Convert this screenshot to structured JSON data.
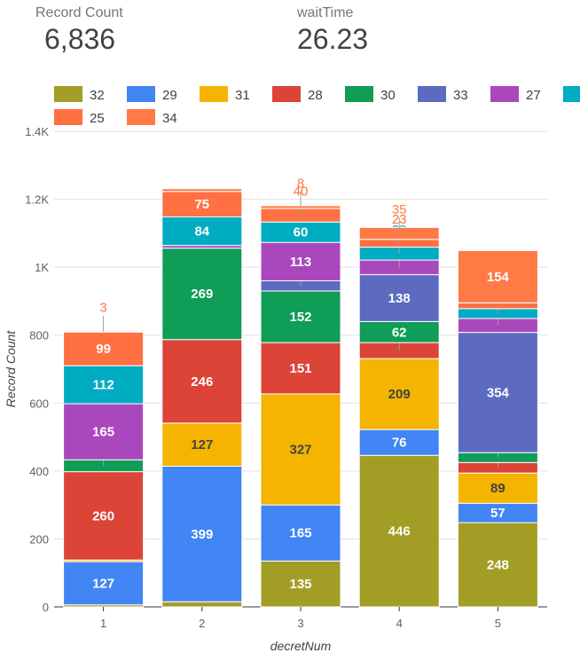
{
  "scorecards": [
    {
      "label": "Record Count",
      "value": "6,836"
    },
    {
      "label": "waitTime",
      "value": "26.23"
    }
  ],
  "chart_data": {
    "type": "bar",
    "stacked": true,
    "xlabel": "decretNum",
    "ylabel": "Record Count",
    "categories": [
      "1",
      "2",
      "3",
      "4",
      "5"
    ],
    "ylim": [
      0,
      1400
    ],
    "yticks": [
      0,
      200,
      400,
      600,
      800,
      1000,
      1200,
      1400
    ],
    "ytick_labels": [
      "0",
      "200",
      "400",
      "600",
      "800",
      "1K",
      "1.2K",
      "1.4K"
    ],
    "grid": true,
    "legend_position": "top",
    "series": [
      {
        "name": "32",
        "color": "#a29e25",
        "values": [
          6,
          15,
          135,
          446,
          248
        ]
      },
      {
        "name": "29",
        "color": "#4285f4",
        "values": [
          127,
          399,
          165,
          76,
          57
        ]
      },
      {
        "name": "31",
        "color": "#f4b400",
        "values": [
          5,
          127,
          327,
          209,
          89
        ]
      },
      {
        "name": "28",
        "color": "#db4437",
        "values": [
          260,
          246,
          151,
          47,
          31
        ]
      },
      {
        "name": "30",
        "color": "#0f9d58",
        "values": [
          35,
          269,
          152,
          62,
          29
        ]
      },
      {
        "name": "33",
        "color": "#5c6bc0",
        "values": [
          0,
          0,
          30,
          138,
          354
        ]
      },
      {
        "name": "27",
        "color": "#ab47bc",
        "values": [
          165,
          8,
          113,
          43,
          41
        ]
      },
      {
        "name": "26",
        "color": "#00acc1",
        "values": [
          112,
          84,
          60,
          38,
          29
        ]
      },
      {
        "name": "25",
        "color": "#ff7043",
        "values": [
          99,
          75,
          40,
          23,
          17
        ]
      },
      {
        "name": "34",
        "color": "#ff7a45",
        "values": [
          3,
          8,
          8,
          35,
          154
        ]
      }
    ],
    "bar_labels": [
      [
        {
          "text": "6",
          "outside": true
        },
        {
          "text": "127"
        },
        {
          "text": "5",
          "outside": true
        },
        {
          "text": "260"
        },
        {
          "text": "35",
          "outside": true
        },
        null,
        {
          "text": "165"
        },
        {
          "text": "112"
        },
        {
          "text": "99"
        },
        {
          "text": "3",
          "outside": true
        }
      ],
      [
        {
          "text": "15",
          "outside": true
        },
        {
          "text": "399"
        },
        {
          "text": "127"
        },
        {
          "text": "246"
        },
        {
          "text": "269"
        },
        null,
        {
          "text": "8",
          "outside": true
        },
        {
          "text": "84"
        },
        {
          "text": "75"
        },
        null
      ],
      [
        {
          "text": "135"
        },
        {
          "text": "165"
        },
        {
          "text": "327"
        },
        {
          "text": "151"
        },
        {
          "text": "152"
        },
        {
          "text": "30",
          "outside": true
        },
        {
          "text": "113"
        },
        {
          "text": "60"
        },
        {
          "text": "40",
          "outside": true
        },
        {
          "text": "8",
          "outside": true
        }
      ],
      [
        {
          "text": "446"
        },
        {
          "text": "76"
        },
        {
          "text": "209"
        },
        {
          "text": "47",
          "outside": true
        },
        {
          "text": "62"
        },
        {
          "text": "138"
        },
        {
          "text": "43",
          "outside": true
        },
        {
          "text": "38",
          "outside": true
        },
        {
          "text": "23",
          "outside": true
        },
        {
          "text": "35",
          "outside": true
        }
      ],
      [
        {
          "text": "248"
        },
        {
          "text": "57"
        },
        {
          "text": "89"
        },
        {
          "text": "31",
          "outside": true
        },
        {
          "text": "29",
          "outside": true
        },
        {
          "text": "354"
        },
        {
          "text": "41",
          "outside": true
        },
        {
          "text": "29",
          "outside": true
        },
        null,
        {
          "text": "154"
        }
      ]
    ]
  }
}
